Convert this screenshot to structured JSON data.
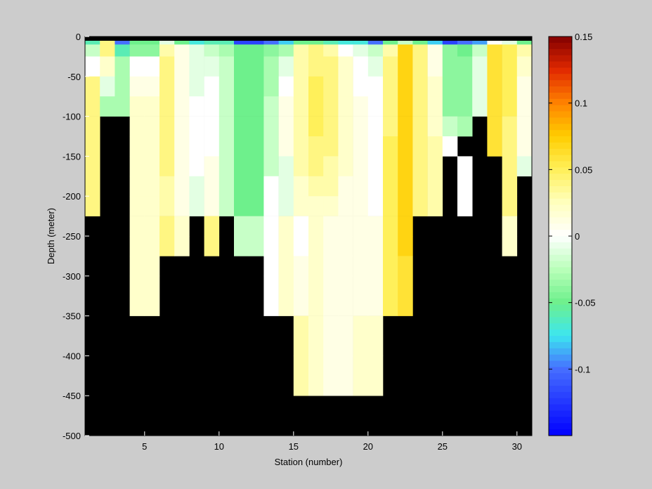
{
  "chart_data": {
    "type": "heatmap",
    "xlabel": "Station (number)",
    "ylabel": "Depth (meter)",
    "xlim": [
      1,
      31
    ],
    "ylim": [
      -500,
      0
    ],
    "x_ticks": [
      5,
      10,
      15,
      20,
      25,
      30
    ],
    "y_ticks": [
      0,
      -50,
      -100,
      -150,
      -200,
      -250,
      -300,
      -350,
      -400,
      -450,
      -500
    ],
    "colorbar": {
      "range": [
        -0.15,
        0.15
      ],
      "ticks": [
        0.15,
        0.1,
        0.05,
        0,
        -0.05,
        -0.1
      ],
      "tick_labels": [
        "0.15",
        "0.1",
        "0.05",
        "0",
        "-0.05",
        "-0.1"
      ],
      "colormap": "jet-white-center"
    },
    "background_color": "#000000",
    "depths_m": [
      0,
      -10,
      -25,
      -50,
      -75,
      -100,
      -125,
      -150,
      -175,
      -200,
      -225,
      -250,
      -275,
      -300,
      -350,
      -400
    ],
    "stations": [
      1,
      2,
      3,
      4,
      5,
      6,
      7,
      8,
      9,
      10,
      11,
      12,
      13,
      14,
      15,
      16,
      17,
      18,
      19,
      20,
      21,
      22,
      23,
      24,
      25,
      26,
      27,
      28,
      29,
      30
    ],
    "max_depth_m": [
      200,
      100,
      100,
      300,
      300,
      250,
      250,
      200,
      250,
      200,
      250,
      250,
      300,
      300,
      400,
      400,
      400,
      400,
      400,
      400,
      300,
      300,
      200,
      200,
      150,
      200,
      125,
      100,
      250,
      150
    ],
    "values": [
      [
        -0.06,
        0.04,
        -0.1,
        -0.05,
        -0.05,
        -0.01,
        -0.05,
        -0.07,
        -0.06,
        -0.06,
        -0.12,
        -0.12,
        -0.1,
        -0.08,
        -0.05,
        -0.05,
        -0.06,
        -0.07,
        -0.07,
        -0.1,
        -0.05,
        -0.02,
        -0.05,
        -0.08,
        -0.12,
        -0.1,
        -0.09,
        0.0,
        -0.01,
        -0.05
      ],
      [
        -0.02,
        0.04,
        -0.06,
        -0.04,
        -0.04,
        0.03,
        0.01,
        -0.01,
        -0.02,
        -0.03,
        -0.05,
        -0.05,
        -0.04,
        -0.03,
        0.03,
        0.04,
        0.03,
        0.0,
        -0.01,
        -0.02,
        0.03,
        0.07,
        0.04,
        0.01,
        -0.04,
        -0.05,
        -0.02,
        0.06,
        0.05,
        0.03
      ],
      [
        0.0,
        0.02,
        -0.03,
        0.0,
        0.0,
        0.04,
        0.01,
        -0.01,
        -0.01,
        -0.02,
        -0.05,
        -0.05,
        -0.03,
        -0.01,
        0.03,
        0.04,
        0.04,
        0.02,
        0.0,
        -0.01,
        0.04,
        0.07,
        0.04,
        0.01,
        -0.04,
        -0.04,
        -0.01,
        0.06,
        0.05,
        0.02
      ],
      [
        0.04,
        -0.01,
        -0.03,
        0.01,
        0.01,
        0.04,
        0.01,
        -0.01,
        0.0,
        -0.02,
        -0.05,
        -0.05,
        -0.03,
        0.0,
        0.03,
        0.05,
        0.04,
        0.02,
        0.0,
        0.0,
        0.04,
        0.07,
        0.04,
        0.02,
        -0.04,
        -0.04,
        -0.01,
        0.06,
        0.05,
        0.01
      ],
      [
        0.04,
        -0.03,
        -0.03,
        0.02,
        0.02,
        0.04,
        0.01,
        0.0,
        0.0,
        -0.02,
        -0.05,
        -0.05,
        -0.02,
        0.01,
        0.03,
        0.05,
        0.04,
        0.02,
        0.01,
        0.0,
        0.04,
        0.07,
        0.04,
        0.02,
        -0.04,
        -0.04,
        -0.01,
        0.06,
        0.05,
        0.01
      ],
      [
        0.04,
        null,
        null,
        0.02,
        0.02,
        0.04,
        0.01,
        0.0,
        0.0,
        -0.02,
        -0.05,
        -0.05,
        -0.02,
        0.01,
        0.03,
        0.05,
        0.04,
        0.02,
        0.01,
        0.0,
        0.04,
        0.07,
        0.04,
        0.02,
        -0.02,
        -0.03,
        null,
        0.06,
        0.04,
        0.01
      ],
      [
        0.04,
        null,
        null,
        0.02,
        0.02,
        0.04,
        0.01,
        0.0,
        0.0,
        -0.02,
        -0.05,
        -0.05,
        -0.02,
        0.01,
        0.03,
        0.04,
        0.04,
        0.02,
        0.01,
        0.0,
        0.05,
        0.07,
        0.04,
        0.03,
        0.0,
        null,
        null,
        0.06,
        0.04,
        0.01
      ],
      [
        0.04,
        null,
        null,
        0.02,
        0.02,
        0.04,
        0.01,
        0.0,
        0.01,
        -0.02,
        -0.05,
        -0.05,
        -0.02,
        -0.01,
        0.03,
        0.04,
        0.03,
        0.02,
        0.01,
        0.0,
        0.05,
        0.07,
        0.04,
        0.03,
        null,
        0.0,
        null,
        null,
        0.04,
        -0.01
      ],
      [
        0.04,
        null,
        null,
        0.02,
        0.02,
        0.03,
        0.01,
        -0.01,
        0.01,
        -0.02,
        -0.05,
        -0.05,
        0.0,
        -0.01,
        0.02,
        0.03,
        0.03,
        0.01,
        0.01,
        0.0,
        0.05,
        0.07,
        0.04,
        0.03,
        null,
        0.0,
        null,
        null,
        0.04,
        null
      ],
      [
        0.04,
        null,
        null,
        0.02,
        0.02,
        0.03,
        0.01,
        -0.01,
        0.01,
        -0.02,
        -0.05,
        -0.05,
        0.0,
        -0.01,
        0.02,
        0.02,
        0.02,
        0.01,
        0.01,
        0.0,
        0.05,
        0.07,
        0.04,
        0.03,
        null,
        0.0,
        null,
        null,
        0.04,
        null
      ],
      [
        null,
        null,
        null,
        0.02,
        0.02,
        0.04,
        0.02,
        null,
        0.04,
        null,
        -0.02,
        -0.02,
        0.0,
        0.02,
        0.0,
        0.02,
        0.01,
        0.01,
        0.01,
        0.01,
        0.05,
        0.07,
        null,
        null,
        null,
        null,
        null,
        null,
        0.02,
        null
      ],
      [
        null,
        null,
        null,
        0.02,
        0.02,
        0.04,
        0.02,
        null,
        0.04,
        null,
        -0.02,
        -0.02,
        0.0,
        0.02,
        0.0,
        0.02,
        0.01,
        0.01,
        0.01,
        0.01,
        0.05,
        0.07,
        null,
        null,
        null,
        null,
        null,
        null,
        0.02,
        null
      ],
      [
        null,
        null,
        null,
        0.02,
        0.02,
        null,
        null,
        null,
        null,
        null,
        null,
        null,
        0.0,
        0.02,
        0.01,
        0.02,
        0.01,
        0.01,
        0.01,
        0.01,
        0.05,
        0.06,
        null,
        null,
        null,
        null,
        null,
        null,
        null,
        null
      ],
      [
        null,
        null,
        null,
        0.02,
        0.02,
        null,
        null,
        null,
        null,
        null,
        null,
        null,
        0.0,
        0.02,
        0.01,
        0.02,
        0.01,
        0.01,
        0.01,
        0.01,
        0.05,
        0.06,
        null,
        null,
        null,
        null,
        null,
        null,
        null,
        null
      ],
      [
        null,
        null,
        null,
        null,
        null,
        null,
        null,
        null,
        null,
        null,
        null,
        null,
        null,
        null,
        0.03,
        0.02,
        0.01,
        0.01,
        0.02,
        0.02,
        null,
        null,
        null,
        null,
        null,
        null,
        null,
        null,
        null,
        null
      ],
      [
        null,
        null,
        null,
        null,
        null,
        null,
        null,
        null,
        null,
        null,
        null,
        null,
        null,
        null,
        0.03,
        0.02,
        0.01,
        0.01,
        0.02,
        0.02,
        null,
        null,
        null,
        null,
        null,
        null,
        null,
        null,
        null,
        null
      ]
    ]
  }
}
